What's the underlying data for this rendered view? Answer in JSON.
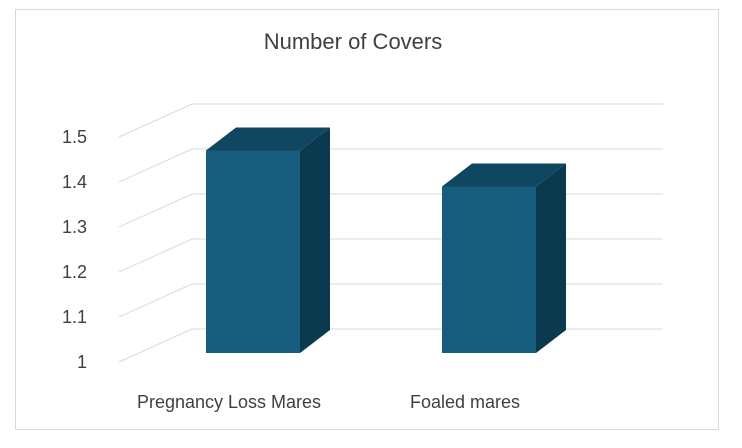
{
  "chart_data": {
    "type": "bar",
    "title": "Number of Covers",
    "categories": [
      "Pregnancy Loss Mares",
      "Foaled mares"
    ],
    "series": [
      {
        "values": [
          1.47,
          1.39
        ]
      }
    ],
    "ylim": [
      1,
      1.5
    ],
    "yticks": [
      "1",
      "1.1",
      "1.2",
      "1.3",
      "1.4",
      "1.5"
    ],
    "grid": true,
    "style": "3d-column",
    "colors": {
      "bar_front": "#175E7E",
      "bar_top": "#0F4660",
      "bar_side": "#0B3A4F",
      "gridline": "#d9d9d9",
      "text": "#404040"
    }
  }
}
